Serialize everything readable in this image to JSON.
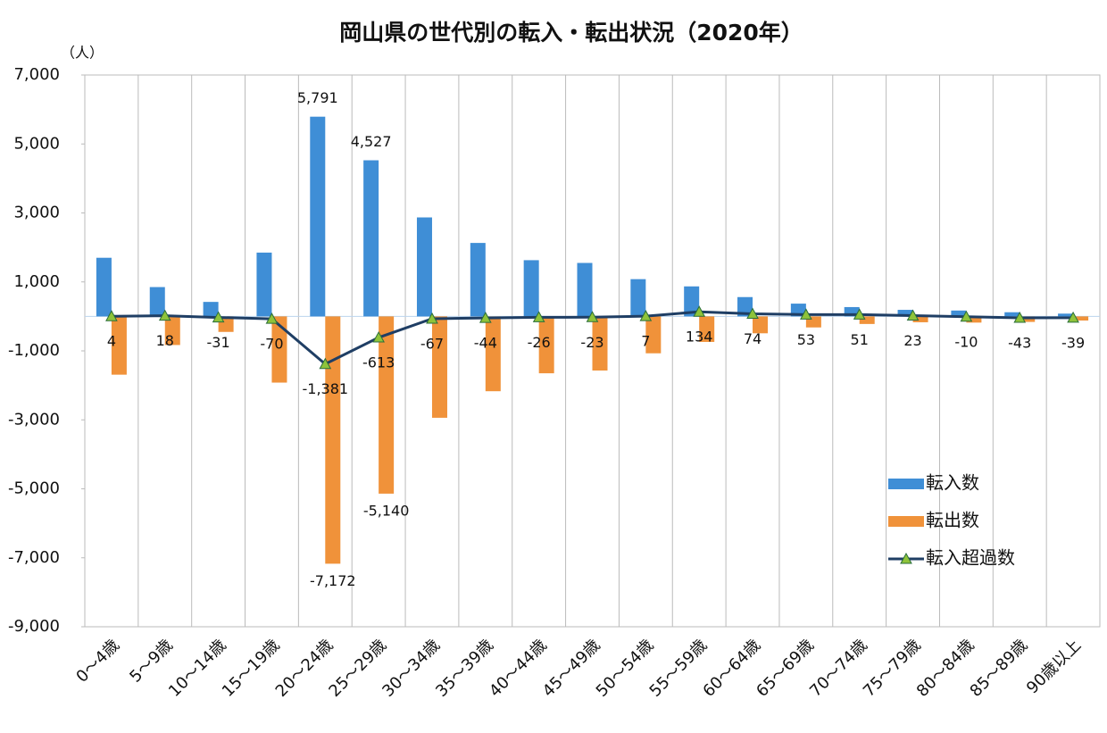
{
  "chart_data": {
    "type": "bar",
    "title": "岡山県の世代別の転入・転出状況（2020年）",
    "y_unit": "（人）",
    "categories": [
      "0～4歳",
      "5～9歳",
      "10～14歳",
      "15～19歳",
      "20～24歳",
      "25～29歳",
      "30～34歳",
      "35～39歳",
      "40～44歳",
      "45～49歳",
      "50～54歳",
      "55～59歳",
      "60～64歳",
      "65～69歳",
      "70～74歳",
      "75～79歳",
      "80～84歳",
      "85～89歳",
      "90歳以上"
    ],
    "series": [
      {
        "name": "転入数",
        "color": "#3f8ed6",
        "values": [
          1700,
          850,
          420,
          1850,
          5791,
          4527,
          2870,
          2130,
          1630,
          1550,
          1080,
          870,
          560,
          370,
          270,
          190,
          170,
          120,
          80
        ],
        "value_labels": [
          null,
          null,
          null,
          null,
          "5,791",
          "4,527",
          null,
          null,
          null,
          null,
          null,
          null,
          null,
          null,
          null,
          null,
          null,
          null,
          null
        ]
      },
      {
        "name": "転出数",
        "color": "#f0923a",
        "values": [
          -1690,
          -830,
          -450,
          -1920,
          -7172,
          -5140,
          -2940,
          -2170,
          -1650,
          -1570,
          -1070,
          -740,
          -490,
          -320,
          -220,
          -170,
          -180,
          -160,
          -120
        ],
        "value_labels": [
          null,
          null,
          null,
          null,
          "-7,172",
          "-5,140",
          null,
          null,
          null,
          null,
          null,
          null,
          null,
          null,
          null,
          null,
          null,
          null,
          null
        ]
      },
      {
        "name": "転入超過数",
        "type": "line",
        "color": "#1f3e64",
        "marker_color": "#8fc33a",
        "values": [
          4,
          18,
          -31,
          -70,
          -1381,
          -613,
          -67,
          -44,
          -26,
          -23,
          7,
          134,
          74,
          53,
          51,
          23,
          -10,
          -43,
          -39
        ],
        "value_labels": [
          "4",
          "18",
          "-31",
          "-70",
          "-1,381",
          "-613",
          "-67",
          "-44",
          "-26",
          "-23",
          "7",
          "134",
          "74",
          "53",
          "51",
          "23",
          "-10",
          "-43",
          "-39"
        ]
      }
    ],
    "ylim": [
      -9000,
      7000
    ],
    "yticks": [
      {
        "value": -9000,
        "label": "-9,000"
      },
      {
        "value": -7000,
        "label": "-7,000"
      },
      {
        "value": -5000,
        "label": "-5,000"
      },
      {
        "value": -3000,
        "label": "-3,000"
      },
      {
        "value": -1000,
        "label": "-1,000"
      },
      {
        "value": 1000,
        "label": "1,000"
      },
      {
        "value": 3000,
        "label": "3,000"
      },
      {
        "value": 5000,
        "label": "5,000"
      },
      {
        "value": 7000,
        "label": "7,000"
      }
    ],
    "legend": "lower right",
    "negative_label_color": "#e8202a"
  }
}
